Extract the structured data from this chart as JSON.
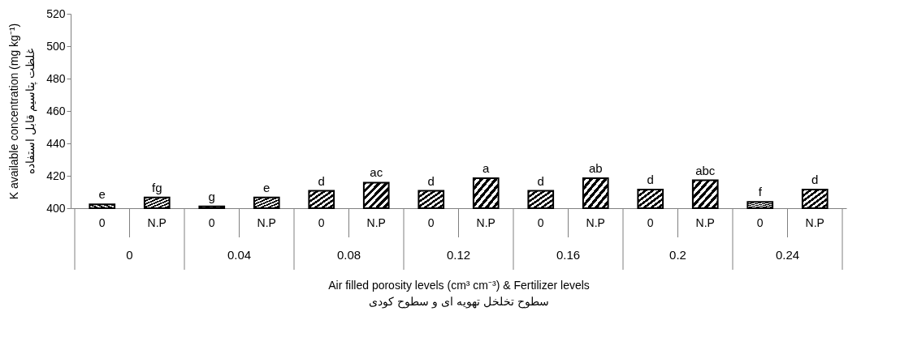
{
  "chart_data": {
    "type": "bar",
    "categories": [
      "0",
      "N.P",
      "0",
      "N.P",
      "0",
      "N.P",
      "0",
      "N.P",
      "0",
      "N.P",
      "0",
      "N.P",
      "0",
      "N.P"
    ],
    "values": [
      402.4,
      406.6,
      401.1,
      406.6,
      410.7,
      415.8,
      410.7,
      418.5,
      410.7,
      418.5,
      411.5,
      417.2,
      403.9,
      411.5
    ],
    "value_labels": [
      "e",
      "fg",
      "g",
      "e",
      "d",
      "ac",
      "d",
      "a",
      "d",
      "ab",
      "d",
      "abc",
      "f",
      "d"
    ],
    "color": "#000000",
    "ylim": [
      400,
      520
    ],
    "yticks": [
      400,
      420,
      440,
      460,
      480,
      500,
      520
    ],
    "xlabel": "Air filled porosity levels (cm³ cm⁻³) & Fertilizer levels\nسطوح تخلخل تهویه ای و سطوح کودی",
    "ylabel": "K available concentration (mg kg⁻¹)\nغلظت پتاسیم قابل استفاده",
    "annotations": [
      "0",
      "0.04",
      "0.08",
      "0.12",
      "0.16",
      "0.2",
      "0.24"
    ],
    "grid": false
  }
}
